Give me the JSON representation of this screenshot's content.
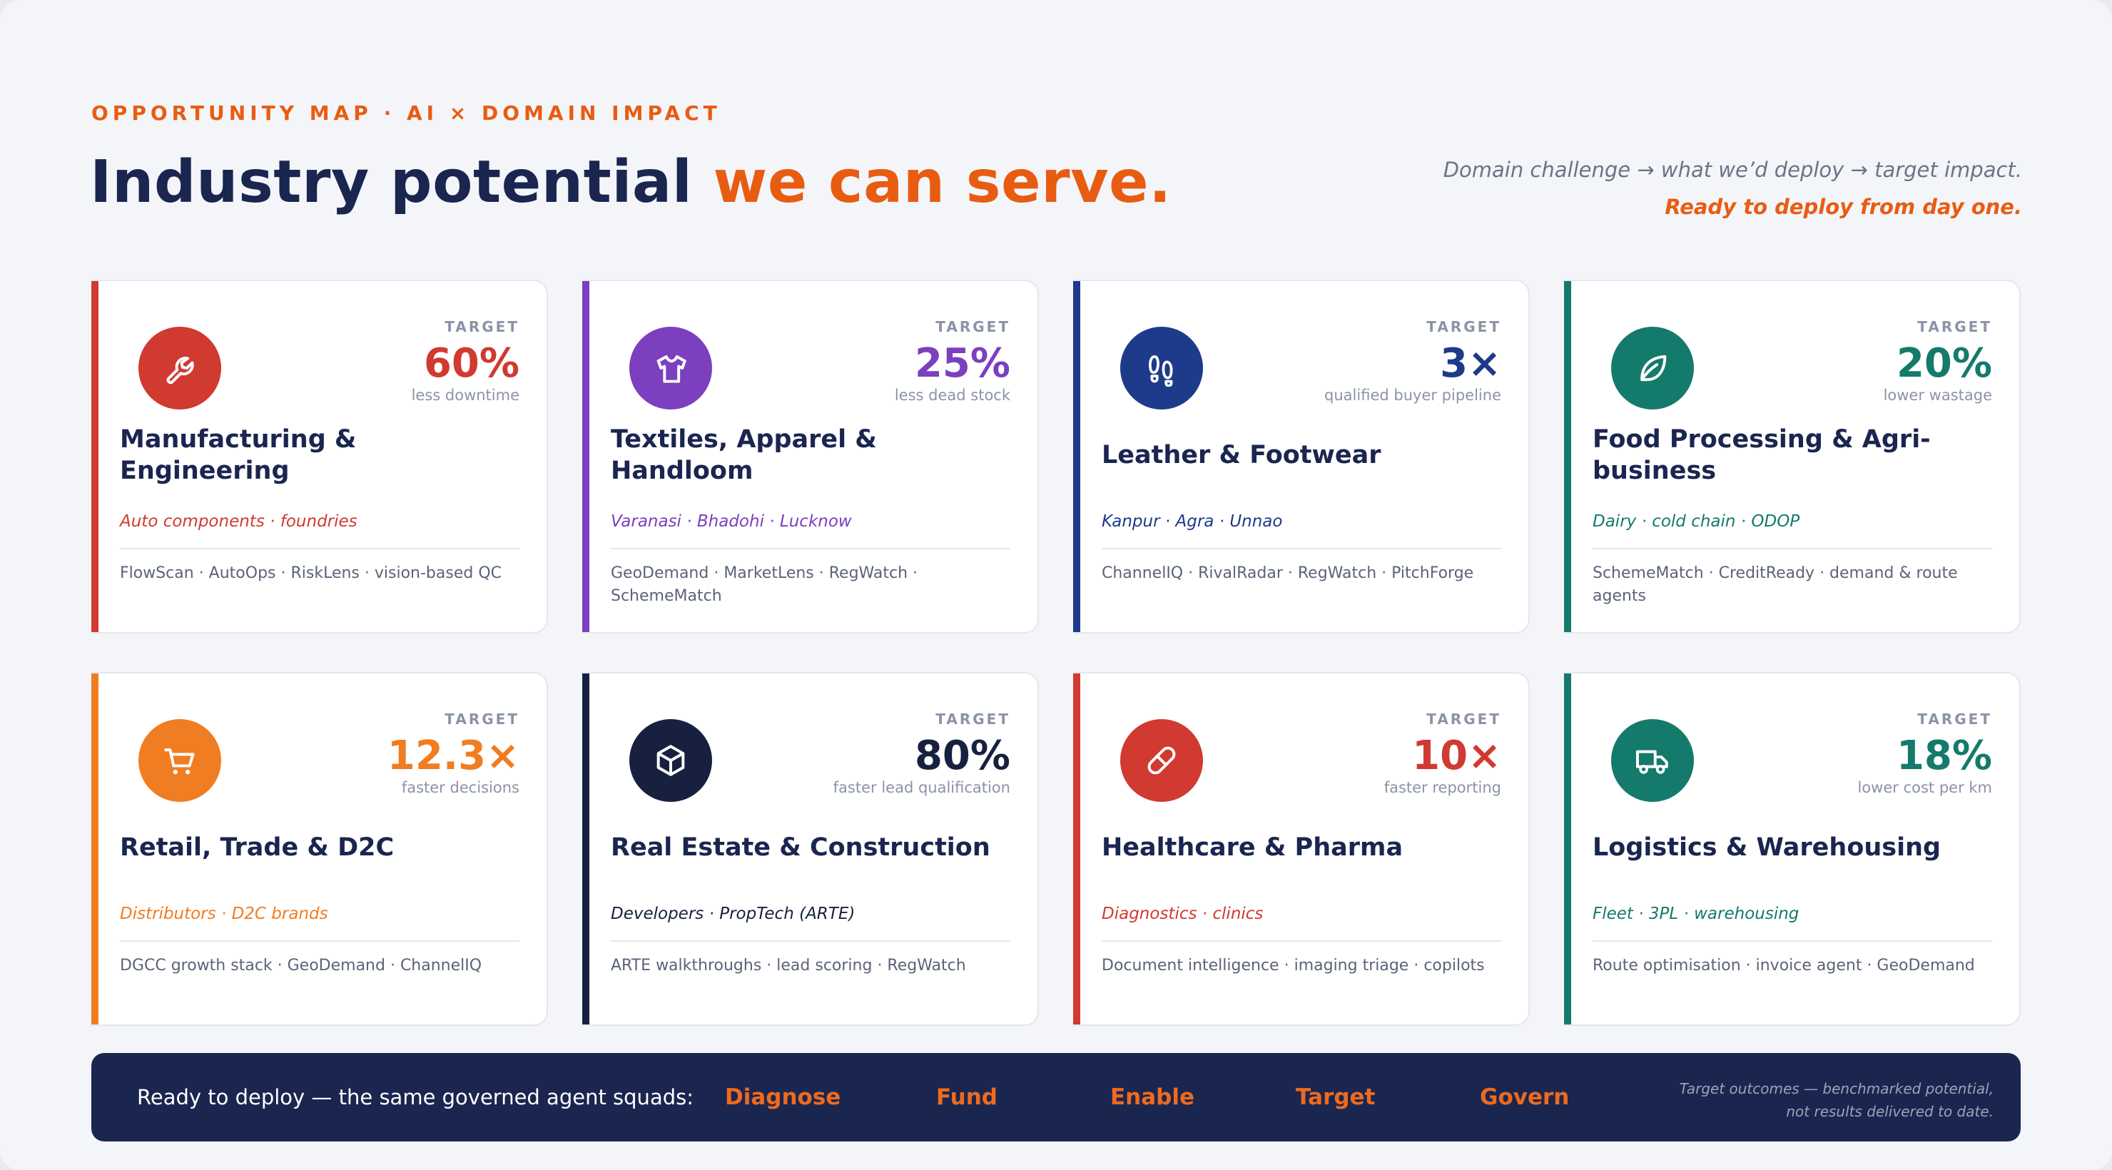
{
  "header": {
    "eyebrow": "OPPORTUNITY MAP · AI × DOMAIN IMPACT",
    "title_main": "Industry potential ",
    "title_accent": "we can serve.",
    "sub_line1": "Domain challenge → what we’d deploy → target impact.",
    "sub_line2": "Ready to deploy from day one."
  },
  "target_label": "TARGET",
  "cards": [
    {
      "name": "Manufacturing & Engineering",
      "target_value": "60%",
      "target_desc": "less downtime",
      "regions": "Auto components · foundries",
      "tools": "FlowScan · AutoOps · RiskLens · vision-based QC",
      "color": "#d03a30",
      "icon": "wrench-icon"
    },
    {
      "name": "Textiles, Apparel & Handloom",
      "target_value": "25%",
      "target_desc": "less dead stock",
      "regions": "Varanasi · Bhadohi · Lucknow",
      "tools": "GeoDemand · MarketLens · RegWatch · SchemeMatch",
      "color": "#7b3fbf",
      "icon": "shirt-icon"
    },
    {
      "name": "Leather & Footwear",
      "target_value": "3×",
      "target_desc": "qualified buyer pipeline",
      "regions": "Kanpur · Agra · Unnao",
      "tools": "ChannelIQ · RivalRadar · RegWatch · PitchForge",
      "color": "#1e3a8a",
      "icon": "footprints-icon"
    },
    {
      "name": "Food Processing & Agri-business",
      "target_value": "20%",
      "target_desc": "lower wastage",
      "regions": "Dairy · cold chain · ODOP",
      "tools": "SchemeMatch · CreditReady · demand & route agents",
      "color": "#147a6c",
      "icon": "leaf-icon"
    },
    {
      "name": "Retail, Trade & D2C",
      "target_value": "12.3×",
      "target_desc": "faster decisions",
      "regions": "Distributors · D2C brands",
      "tools": "DGCC growth stack · GeoDemand · ChannelIQ",
      "color": "#f07d22",
      "icon": "shopping-cart-icon"
    },
    {
      "name": "Real Estate & Construction",
      "target_value": "80%",
      "target_desc": "faster lead qualification",
      "regions": "Developers · PropTech (ARTE)",
      "tools": "ARTE walkthroughs · lead scoring · RegWatch",
      "color": "#17213f",
      "icon": "cube-icon"
    },
    {
      "name": "Healthcare & Pharma",
      "target_value": "10×",
      "target_desc": "faster reporting",
      "regions": "Diagnostics · clinics",
      "tools": "Document intelligence · imaging triage · copilots",
      "color": "#d03a30",
      "icon": "pill-icon"
    },
    {
      "name": "Logistics & Warehousing",
      "target_value": "18%",
      "target_desc": "lower cost per km",
      "regions": "Fleet · 3PL · warehousing",
      "tools": "Route optimisation · invoice agent · GeoDemand",
      "color": "#147a6c",
      "icon": "truck-icon"
    }
  ],
  "footer": {
    "lead": "Ready to deploy — the same governed agent squads:",
    "squads": [
      "Diagnose",
      "Fund",
      "Enable",
      "Target",
      "Govern"
    ],
    "note_line1": "Target outcomes — benchmarked potential,",
    "note_line2": "not results delivered to date."
  }
}
